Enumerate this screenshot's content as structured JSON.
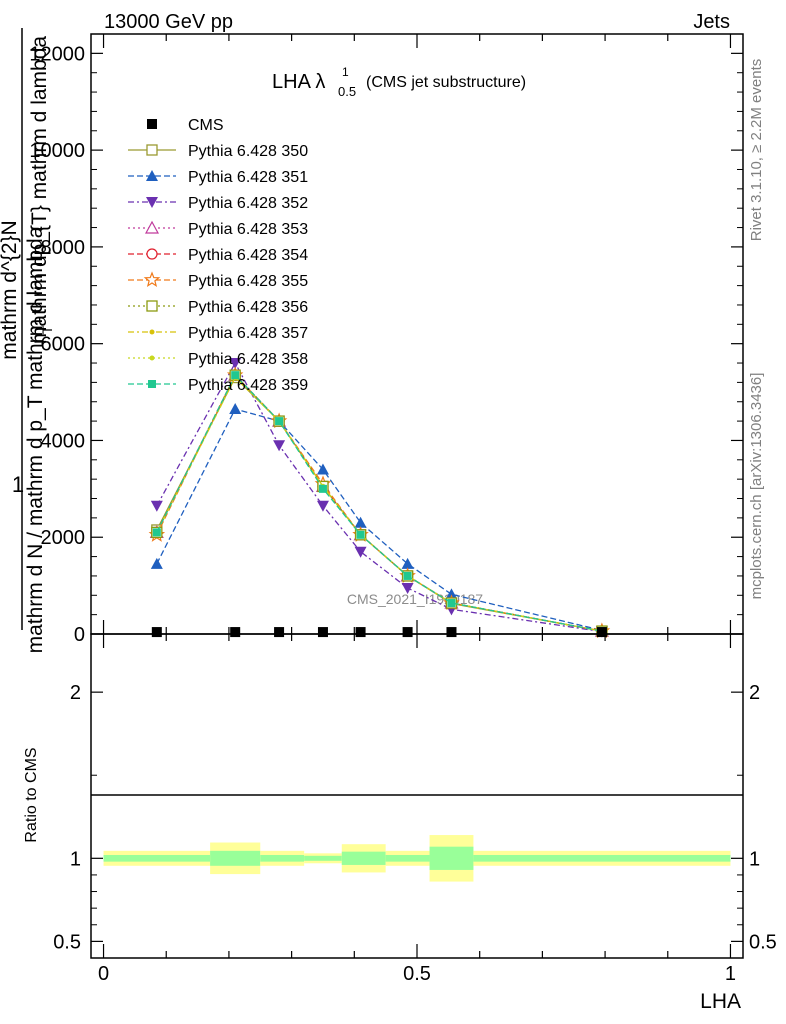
{
  "header": {
    "left": "13000 GeV pp",
    "right": "Jets"
  },
  "side_labels": {
    "rivet": "Rivet 3.1.10, ≥ 2.2M events",
    "mcplots": "mcplots.cern.ch [arXiv:1306.3436]"
  },
  "watermark": "CMS_2021_I1920187",
  "chart_data": {
    "type": "line",
    "title_main": "LHA λ",
    "title_sup": "1",
    "title_sub": "0.5",
    "title_suffix": "(CMS jet substructure)",
    "ylabel_top": "1",
    "ylabel_main": "mathrm d N / mathrm d p_T mathrm d lambda",
    "ylabel_numerator": "mathrm d^{2}N",
    "ylabel_denominator": "mathrm dp_{T} mathrm d lambda",
    "ylabel_sub": "T",
    "xlabel": "LHA",
    "xlim": [
      -0.02,
      1.02
    ],
    "ylim": [
      0,
      12400
    ],
    "yticks": [
      {
        "value": 0,
        "label": "0"
      },
      {
        "value": 2000,
        "label": "2000"
      },
      {
        "value": 4000,
        "label": "4000"
      },
      {
        "value": 6000,
        "label": "6000"
      },
      {
        "value": 8000,
        "label": "8000"
      },
      {
        "value": 10000,
        "label": "10000"
      },
      {
        "value": 12000,
        "label": "12000"
      }
    ],
    "xticks": [
      {
        "value": 0,
        "label": "0"
      },
      {
        "value": 0.5,
        "label": "0.5"
      },
      {
        "value": 1,
        "label": "1"
      }
    ],
    "x": [
      0.085,
      0.21,
      0.28,
      0.35,
      0.41,
      0.485,
      0.555,
      0.795
    ],
    "data": {
      "name": "CMS",
      "values": [
        40,
        40,
        40,
        40,
        40,
        40,
        40,
        40
      ]
    },
    "series": [
      {
        "name": "Pythia 6.428 350",
        "color": "#9a9a32",
        "dash": "",
        "marker": "square-open",
        "values": [
          2150,
          5300,
          4400,
          3050,
          2050,
          1200,
          630,
          60
        ]
      },
      {
        "name": "Pythia 6.428 351",
        "color": "#1f5fbf",
        "dash": "6,3",
        "marker": "triangle-up-filled",
        "values": [
          1450,
          4650,
          4400,
          3400,
          2300,
          1450,
          820,
          75
        ]
      },
      {
        "name": "Pythia 6.428 352",
        "color": "#6a30b0",
        "dash": "6,3,2,3",
        "marker": "triangle-down-filled",
        "values": [
          2650,
          5600,
          3900,
          2650,
          1700,
          950,
          510,
          50
        ]
      },
      {
        "name": "Pythia 6.428 353",
        "color": "#c03a9c",
        "dash": "2,3",
        "marker": "triangle-up-open",
        "values": [
          2100,
          5350,
          4400,
          3050,
          2050,
          1200,
          640,
          60
        ]
      },
      {
        "name": "Pythia 6.428 354",
        "color": "#e0202e",
        "dash": "6,3",
        "marker": "circle-open",
        "values": [
          2100,
          5350,
          4400,
          3050,
          2050,
          1200,
          640,
          60
        ]
      },
      {
        "name": "Pythia 6.428 355",
        "color": "#f07a1a",
        "dash": "6,3",
        "marker": "star-open",
        "values": [
          2050,
          5350,
          4400,
          3100,
          2050,
          1200,
          640,
          60
        ]
      },
      {
        "name": "Pythia 6.428 356",
        "color": "#8c9a10",
        "dash": "2,3",
        "marker": "square-open",
        "values": [
          2100,
          5350,
          4400,
          3050,
          2050,
          1200,
          640,
          60
        ]
      },
      {
        "name": "Pythia 6.428 357",
        "color": "#d8c20a",
        "dash": "6,3,2,3",
        "marker": "dot-filled",
        "values": [
          2100,
          5300,
          4400,
          3050,
          2050,
          1200,
          640,
          60
        ]
      },
      {
        "name": "Pythia 6.428 358",
        "color": "#c8d820",
        "dash": "2,3",
        "marker": "dot-filled",
        "values": [
          2100,
          5300,
          4400,
          3050,
          2050,
          1200,
          640,
          60
        ]
      },
      {
        "name": "Pythia 6.428 359",
        "color": "#20c890",
        "dash": "6,3",
        "marker": "square-filled",
        "values": [
          2100,
          5350,
          4400,
          3000,
          2050,
          1200,
          640,
          60
        ]
      }
    ],
    "ratio": {
      "ylabel": "Ratio to CMS",
      "ylim": [
        0.4,
        2.35
      ],
      "yticks": [
        {
          "value": 0.5,
          "label": "0.5"
        },
        {
          "value": 1,
          "label": "1"
        },
        {
          "value": 2,
          "label": "2"
        }
      ],
      "bins": [
        {
          "x0": 0.0,
          "x1": 0.17,
          "green": [
            0.98,
            1.02
          ],
          "yellow": [
            0.955,
            1.045
          ]
        },
        {
          "x0": 0.17,
          "x1": 0.25,
          "green": [
            0.955,
            1.045
          ],
          "yellow": [
            0.905,
            1.095
          ]
        },
        {
          "x0": 0.25,
          "x1": 0.32,
          "green": [
            0.98,
            1.02
          ],
          "yellow": [
            0.955,
            1.045
          ]
        },
        {
          "x0": 0.32,
          "x1": 0.38,
          "green": [
            0.985,
            1.015
          ],
          "yellow": [
            0.97,
            1.03
          ]
        },
        {
          "x0": 0.38,
          "x1": 0.45,
          "green": [
            0.96,
            1.04
          ],
          "yellow": [
            0.915,
            1.085
          ]
        },
        {
          "x0": 0.45,
          "x1": 0.52,
          "green": [
            0.98,
            1.02
          ],
          "yellow": [
            0.955,
            1.045
          ]
        },
        {
          "x0": 0.52,
          "x1": 0.59,
          "green": [
            0.93,
            1.07
          ],
          "yellow": [
            0.86,
            1.14
          ]
        },
        {
          "x0": 0.59,
          "x1": 1.0,
          "green": [
            0.98,
            1.02
          ],
          "yellow": [
            0.955,
            1.045
          ]
        }
      ]
    }
  }
}
